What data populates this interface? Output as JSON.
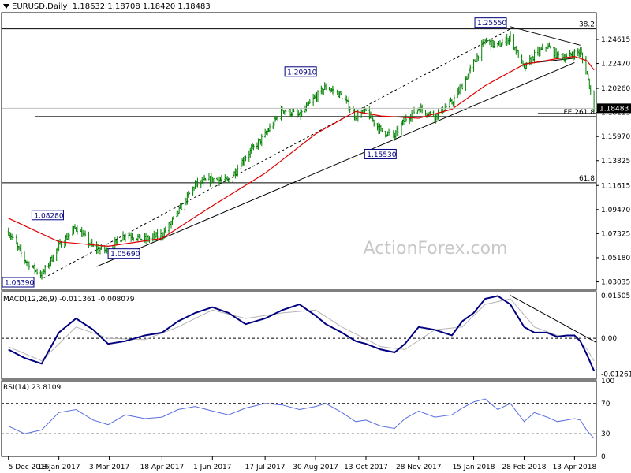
{
  "header": {
    "symbol_text": "EURUSD,Daily",
    "ohlc_text": "1.18632 1.18708 1.18420 1.18483",
    "dropdown_icon": "triangle-down-icon"
  },
  "watermark": "ActionForex.com",
  "colors": {
    "background": "#ffffff",
    "candle": "#008000",
    "ma": "#e00000",
    "macd_main": "#000080",
    "macd_signal": "#b4b4b4",
    "rsi": "#5b6ee1",
    "trendline": "#000000",
    "level_line": "#000000",
    "grid_dash": "#000000",
    "price_tag_bg": "#000000",
    "price_tag_text": "#ffffff",
    "label_box_border": "#000080",
    "label_text": "#000080"
  },
  "chart_data": [
    {
      "type": "candlestick",
      "title": "EURUSD,Daily",
      "ylim": [
        1.023,
        1.27
      ],
      "y_ticks": [
        "1.24615",
        "1.22470",
        "1.20260",
        "1.18115",
        "1.15970",
        "1.13825",
        "1.11615",
        "1.09470",
        "1.07325",
        "1.05180",
        "1.03035"
      ],
      "y_tick_values": [
        1.24615,
        1.2247,
        1.2026,
        1.18115,
        1.1597,
        1.13825,
        1.11615,
        1.0947,
        1.07325,
        1.0518,
        1.03035
      ],
      "x_ticks": [
        "5 Dec 2016",
        "18 Jan 2017",
        "3 Mar 2017",
        "18 Apr 2017",
        "1 Jun 2017",
        "17 Jul 2017",
        "30 Aug 2017",
        "13 Oct 2017",
        "28 Nov 2017",
        "15 Jan 2018",
        "28 Feb 2018",
        "13 Apr 2018"
      ],
      "current_price": {
        "value": 1.18483,
        "label": "1.18483"
      },
      "price_labels": [
        {
          "text": "1.03390",
          "value": 1.0339,
          "date": "2017-01-03"
        },
        {
          "text": "1.08280",
          "value": 1.0828,
          "date": "2017-02-02"
        },
        {
          "text": "1.05690",
          "value": 1.0569,
          "date": "2017-03-02"
        },
        {
          "text": "1.20910",
          "value": 1.2091,
          "date": "2017-09-08"
        },
        {
          "text": "1.15530",
          "value": 1.1553,
          "date": "2017-11-07"
        },
        {
          "text": "1.25550",
          "value": 1.2555,
          "date": "2018-02-16"
        }
      ],
      "levels": [
        {
          "label": "38.2",
          "value": 1.2555
        },
        {
          "label": "FE 261.8",
          "value": 1.1775
        },
        {
          "label": "61.8",
          "value": 1.1185
        }
      ],
      "close_series": {
        "dates": [
          "2016-12-05",
          "2016-12-19",
          "2017-01-03",
          "2017-01-18",
          "2017-02-02",
          "2017-02-17",
          "2017-03-02",
          "2017-03-17",
          "2017-04-03",
          "2017-04-18",
          "2017-05-02",
          "2017-05-17",
          "2017-06-01",
          "2017-06-15",
          "2017-06-30",
          "2017-07-17",
          "2017-08-01",
          "2017-08-16",
          "2017-08-30",
          "2017-09-08",
          "2017-09-22",
          "2017-10-04",
          "2017-10-13",
          "2017-10-26",
          "2017-11-07",
          "2017-11-16",
          "2017-11-28",
          "2017-12-12",
          "2017-12-27",
          "2018-01-05",
          "2018-01-15",
          "2018-01-25",
          "2018-02-05",
          "2018-02-16",
          "2018-02-28",
          "2018-03-09",
          "2018-03-20",
          "2018-03-29",
          "2018-04-06",
          "2018-04-13",
          "2018-04-18",
          "2018-04-24",
          "2018-04-30"
        ],
        "values": [
          1.075,
          1.05,
          1.036,
          1.062,
          1.079,
          1.061,
          1.058,
          1.073,
          1.068,
          1.072,
          1.092,
          1.117,
          1.122,
          1.12,
          1.142,
          1.161,
          1.184,
          1.178,
          1.195,
          1.204,
          1.196,
          1.178,
          1.182,
          1.165,
          1.16,
          1.175,
          1.185,
          1.178,
          1.19,
          1.205,
          1.225,
          1.245,
          1.24,
          1.248,
          1.22,
          1.232,
          1.24,
          1.232,
          1.23,
          1.234,
          1.235,
          1.215,
          1.185
        ]
      },
      "ma_series": {
        "dates": [
          "2016-12-05",
          "2017-01-18",
          "2017-03-02",
          "2017-04-18",
          "2017-06-01",
          "2017-07-17",
          "2017-08-30",
          "2017-10-04",
          "2017-10-26",
          "2017-11-28",
          "2017-12-27",
          "2018-01-25",
          "2018-02-28",
          "2018-03-29",
          "2018-04-13",
          "2018-04-24",
          "2018-04-30"
        ],
        "values": [
          1.087,
          1.066,
          1.062,
          1.069,
          1.098,
          1.127,
          1.162,
          1.182,
          1.178,
          1.176,
          1.184,
          1.205,
          1.224,
          1.229,
          1.231,
          1.227,
          1.219
        ]
      }
    },
    {
      "type": "line",
      "title": "MACD(12,26,9) -0.011361 -0.008079",
      "ylim": [
        -0.0145,
        0.0165
      ],
      "y_ticks": [
        "0.015057",
        "0.00",
        "-0.012619"
      ],
      "y_tick_values": [
        0.015057,
        0.0,
        -0.012619
      ],
      "series": [
        {
          "name": "MACD",
          "dates": [
            "2016-12-05",
            "2016-12-19",
            "2017-01-03",
            "2017-01-18",
            "2017-02-02",
            "2017-02-17",
            "2017-03-02",
            "2017-03-17",
            "2017-04-03",
            "2017-04-18",
            "2017-05-02",
            "2017-05-17",
            "2017-06-01",
            "2017-06-15",
            "2017-06-30",
            "2017-07-17",
            "2017-08-01",
            "2017-08-16",
            "2017-08-30",
            "2017-09-08",
            "2017-09-22",
            "2017-10-04",
            "2017-10-13",
            "2017-10-26",
            "2017-11-07",
            "2017-11-16",
            "2017-11-28",
            "2017-12-12",
            "2017-12-27",
            "2018-01-05",
            "2018-01-15",
            "2018-01-25",
            "2018-02-05",
            "2018-02-16",
            "2018-02-28",
            "2018-03-09",
            "2018-03-20",
            "2018-03-29",
            "2018-04-06",
            "2018-04-13",
            "2018-04-18",
            "2018-04-24",
            "2018-04-30"
          ],
          "values": [
            -0.004,
            -0.007,
            -0.009,
            0.002,
            0.007,
            0.003,
            -0.002,
            -0.001,
            0.001,
            0.002,
            0.006,
            0.009,
            0.011,
            0.009,
            0.005,
            0.007,
            0.01,
            0.012,
            0.008,
            0.005,
            0.002,
            -0.001,
            -0.002,
            -0.004,
            -0.005,
            -0.002,
            0.004,
            0.003,
            0.001,
            0.006,
            0.009,
            0.014,
            0.015,
            0.012,
            0.004,
            0.002,
            0.002,
            0.0005,
            0.001,
            0.001,
            -0.001,
            -0.006,
            -0.0115
          ]
        },
        {
          "name": "Signal",
          "dates": [
            "2016-12-05",
            "2017-01-03",
            "2017-02-02",
            "2017-03-02",
            "2017-04-03",
            "2017-05-02",
            "2017-06-01",
            "2017-06-30",
            "2017-08-01",
            "2017-08-30",
            "2017-09-22",
            "2017-10-26",
            "2017-11-16",
            "2017-12-12",
            "2018-01-05",
            "2018-01-25",
            "2018-02-16",
            "2018-03-09",
            "2018-03-29",
            "2018-04-13",
            "2018-04-24",
            "2018-04-30"
          ],
          "values": [
            -0.003,
            -0.008,
            0.004,
            0.0,
            -0.0005,
            0.004,
            0.01,
            0.007,
            0.009,
            0.01,
            0.004,
            -0.003,
            -0.004,
            0.003,
            0.004,
            0.012,
            0.014,
            0.004,
            0.001,
            0.001,
            -0.004,
            -0.008
          ]
        }
      ]
    },
    {
      "type": "line",
      "title": "RSI(14) 23.8109",
      "ylim": [
        0,
        100
      ],
      "y_ticks": [
        "100",
        "70",
        "30",
        "0"
      ],
      "y_tick_values": [
        100,
        70,
        30,
        0
      ],
      "series": [
        {
          "name": "RSI",
          "dates": [
            "2016-12-05",
            "2016-12-19",
            "2017-01-03",
            "2017-01-18",
            "2017-02-02",
            "2017-02-17",
            "2017-03-02",
            "2017-03-17",
            "2017-04-03",
            "2017-04-18",
            "2017-05-02",
            "2017-05-17",
            "2017-06-01",
            "2017-06-15",
            "2017-06-30",
            "2017-07-17",
            "2017-08-01",
            "2017-08-16",
            "2017-08-30",
            "2017-09-08",
            "2017-09-22",
            "2017-10-04",
            "2017-10-13",
            "2017-10-26",
            "2017-11-07",
            "2017-11-16",
            "2017-11-28",
            "2017-12-12",
            "2017-12-27",
            "2018-01-05",
            "2018-01-15",
            "2018-01-25",
            "2018-02-05",
            "2018-02-16",
            "2018-02-28",
            "2018-03-09",
            "2018-03-20",
            "2018-03-29",
            "2018-04-06",
            "2018-04-13",
            "2018-04-18",
            "2018-04-24",
            "2018-04-30"
          ],
          "values": [
            40,
            30,
            35,
            58,
            62,
            48,
            42,
            55,
            50,
            52,
            62,
            66,
            60,
            55,
            64,
            70,
            68,
            62,
            66,
            70,
            58,
            46,
            48,
            40,
            37,
            50,
            60,
            52,
            55,
            64,
            72,
            76,
            62,
            70,
            46,
            58,
            52,
            46,
            48,
            50,
            48,
            34,
            23.81
          ]
        }
      ]
    }
  ]
}
